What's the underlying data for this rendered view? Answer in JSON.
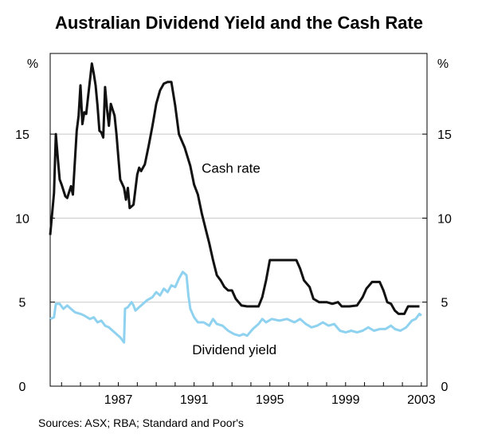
{
  "chart_data": {
    "type": "line",
    "title": "Australian Dividend Yield and the Cash Rate",
    "y_unit_left": "%",
    "y_unit_right": "%",
    "ylim": [
      0,
      19.8
    ],
    "yticks": [
      0,
      5,
      10,
      15
    ],
    "xlim": [
      1983.4,
      2003.3
    ],
    "xticks": [
      1987,
      1991,
      1995,
      1999,
      2003
    ],
    "grid": true,
    "source": "Sources: ASX; RBA; Standard and Poor's",
    "series": [
      {
        "name": "Cash rate",
        "color": "#111111",
        "label_x": 1991.4,
        "label_y": 12.7,
        "points": [
          [
            1983.4,
            9.0
          ],
          [
            1983.6,
            11.5
          ],
          [
            1983.7,
            15.0
          ],
          [
            1983.8,
            13.6
          ],
          [
            1983.9,
            12.3
          ],
          [
            1984.0,
            12.0
          ],
          [
            1984.2,
            11.3
          ],
          [
            1984.3,
            11.2
          ],
          [
            1984.5,
            11.9
          ],
          [
            1984.6,
            11.4
          ],
          [
            1984.8,
            15.2
          ],
          [
            1984.9,
            16.1
          ],
          [
            1985.0,
            17.9
          ],
          [
            1985.1,
            15.6
          ],
          [
            1985.2,
            16.3
          ],
          [
            1985.3,
            16.2
          ],
          [
            1985.4,
            17.2
          ],
          [
            1985.6,
            19.2
          ],
          [
            1985.7,
            18.6
          ],
          [
            1985.8,
            17.9
          ],
          [
            1985.9,
            16.7
          ],
          [
            1986.0,
            15.2
          ],
          [
            1986.1,
            15.1
          ],
          [
            1986.2,
            14.8
          ],
          [
            1986.3,
            17.8
          ],
          [
            1986.4,
            16.5
          ],
          [
            1986.5,
            15.5
          ],
          [
            1986.6,
            16.8
          ],
          [
            1986.8,
            16.1
          ],
          [
            1986.9,
            15.0
          ],
          [
            1987.0,
            13.6
          ],
          [
            1987.1,
            12.3
          ],
          [
            1987.3,
            11.8
          ],
          [
            1987.4,
            11.1
          ],
          [
            1987.5,
            11.8
          ],
          [
            1987.6,
            10.6
          ],
          [
            1987.8,
            10.8
          ],
          [
            1988.0,
            12.6
          ],
          [
            1988.1,
            13.0
          ],
          [
            1988.2,
            12.8
          ],
          [
            1988.4,
            13.2
          ],
          [
            1988.6,
            14.3
          ],
          [
            1988.8,
            15.5
          ],
          [
            1989.0,
            16.8
          ],
          [
            1989.2,
            17.6
          ],
          [
            1989.4,
            18.0
          ],
          [
            1989.6,
            18.1
          ],
          [
            1989.8,
            18.1
          ],
          [
            1990.0,
            16.7
          ],
          [
            1990.2,
            15.0
          ],
          [
            1990.5,
            14.2
          ],
          [
            1990.8,
            13.1
          ],
          [
            1991.0,
            12.0
          ],
          [
            1991.2,
            11.4
          ],
          [
            1991.4,
            10.3
          ],
          [
            1991.6,
            9.4
          ],
          [
            1991.8,
            8.5
          ],
          [
            1992.0,
            7.5
          ],
          [
            1992.2,
            6.6
          ],
          [
            1992.4,
            6.3
          ],
          [
            1992.6,
            5.9
          ],
          [
            1992.8,
            5.7
          ],
          [
            1993.0,
            5.7
          ],
          [
            1993.2,
            5.2
          ],
          [
            1993.5,
            4.8
          ],
          [
            1993.8,
            4.75
          ],
          [
            1994.2,
            4.75
          ],
          [
            1994.4,
            4.75
          ],
          [
            1994.6,
            5.3
          ],
          [
            1994.8,
            6.3
          ],
          [
            1995.0,
            7.5
          ],
          [
            1995.3,
            7.5
          ],
          [
            1995.6,
            7.5
          ],
          [
            1996.0,
            7.5
          ],
          [
            1996.4,
            7.5
          ],
          [
            1996.6,
            7.0
          ],
          [
            1996.8,
            6.3
          ],
          [
            1997.1,
            5.9
          ],
          [
            1997.3,
            5.2
          ],
          [
            1997.6,
            5.0
          ],
          [
            1998.0,
            5.0
          ],
          [
            1998.3,
            4.9
          ],
          [
            1998.6,
            5.0
          ],
          [
            1998.8,
            4.75
          ],
          [
            1999.2,
            4.75
          ],
          [
            1999.6,
            4.8
          ],
          [
            1999.9,
            5.3
          ],
          [
            2000.1,
            5.8
          ],
          [
            2000.4,
            6.2
          ],
          [
            2000.8,
            6.2
          ],
          [
            2001.0,
            5.7
          ],
          [
            2001.2,
            5.0
          ],
          [
            2001.4,
            4.9
          ],
          [
            2001.6,
            4.5
          ],
          [
            2001.8,
            4.3
          ],
          [
            2002.1,
            4.3
          ],
          [
            2002.3,
            4.75
          ],
          [
            2002.6,
            4.75
          ],
          [
            2002.9,
            4.75
          ]
        ]
      },
      {
        "name": "Dividend yield",
        "color": "#8fd2f0",
        "label_x": 1990.9,
        "label_y": 1.9,
        "points": [
          [
            1983.4,
            4.0
          ],
          [
            1983.6,
            4.1
          ],
          [
            1983.7,
            4.9
          ],
          [
            1983.9,
            4.9
          ],
          [
            1984.1,
            4.6
          ],
          [
            1984.3,
            4.8
          ],
          [
            1984.5,
            4.6
          ],
          [
            1984.7,
            4.4
          ],
          [
            1985.0,
            4.3
          ],
          [
            1985.2,
            4.2
          ],
          [
            1985.5,
            4.0
          ],
          [
            1985.7,
            4.1
          ],
          [
            1985.9,
            3.8
          ],
          [
            1986.1,
            3.9
          ],
          [
            1986.3,
            3.6
          ],
          [
            1986.5,
            3.5
          ],
          [
            1986.7,
            3.3
          ],
          [
            1986.9,
            3.1
          ],
          [
            1987.1,
            2.9
          ],
          [
            1987.3,
            2.6
          ],
          [
            1987.35,
            4.6
          ],
          [
            1987.5,
            4.7
          ],
          [
            1987.7,
            5.0
          ],
          [
            1987.8,
            4.8
          ],
          [
            1987.9,
            4.5
          ],
          [
            1988.1,
            4.7
          ],
          [
            1988.3,
            4.9
          ],
          [
            1988.5,
            5.1
          ],
          [
            1988.8,
            5.3
          ],
          [
            1989.0,
            5.6
          ],
          [
            1989.2,
            5.4
          ],
          [
            1989.4,
            5.8
          ],
          [
            1989.6,
            5.6
          ],
          [
            1989.8,
            6.0
          ],
          [
            1990.0,
            5.9
          ],
          [
            1990.2,
            6.4
          ],
          [
            1990.4,
            6.8
          ],
          [
            1990.6,
            6.6
          ],
          [
            1990.7,
            5.4
          ],
          [
            1990.8,
            4.6
          ],
          [
            1991.0,
            4.1
          ],
          [
            1991.2,
            3.8
          ],
          [
            1991.5,
            3.8
          ],
          [
            1991.8,
            3.6
          ],
          [
            1992.0,
            4.0
          ],
          [
            1992.2,
            3.7
          ],
          [
            1992.5,
            3.6
          ],
          [
            1992.8,
            3.3
          ],
          [
            1993.1,
            3.1
          ],
          [
            1993.4,
            3.0
          ],
          [
            1993.6,
            3.1
          ],
          [
            1993.8,
            3.0
          ],
          [
            1994.1,
            3.4
          ],
          [
            1994.4,
            3.7
          ],
          [
            1994.6,
            4.0
          ],
          [
            1994.8,
            3.8
          ],
          [
            1995.1,
            4.0
          ],
          [
            1995.5,
            3.9
          ],
          [
            1995.9,
            4.0
          ],
          [
            1996.3,
            3.8
          ],
          [
            1996.6,
            4.0
          ],
          [
            1996.9,
            3.7
          ],
          [
            1997.2,
            3.5
          ],
          [
            1997.5,
            3.6
          ],
          [
            1997.8,
            3.8
          ],
          [
            1998.1,
            3.6
          ],
          [
            1998.4,
            3.7
          ],
          [
            1998.7,
            3.3
          ],
          [
            1999.0,
            3.2
          ],
          [
            1999.3,
            3.3
          ],
          [
            1999.6,
            3.2
          ],
          [
            1999.9,
            3.3
          ],
          [
            2000.2,
            3.5
          ],
          [
            2000.5,
            3.3
          ],
          [
            2000.8,
            3.4
          ],
          [
            2001.1,
            3.4
          ],
          [
            2001.4,
            3.6
          ],
          [
            2001.6,
            3.4
          ],
          [
            2001.9,
            3.3
          ],
          [
            2002.2,
            3.5
          ],
          [
            2002.5,
            3.9
          ],
          [
            2002.7,
            4.0
          ],
          [
            2002.9,
            4.3
          ],
          [
            2003.0,
            4.2
          ]
        ]
      }
    ]
  }
}
